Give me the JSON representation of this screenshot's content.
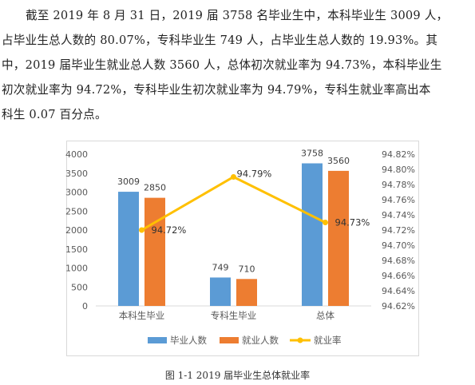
{
  "paragraph": {
    "lines": [
      "截至 2019 年 8 月 31 日，2019 届 3758 名毕业生中，本科毕业生 3009 人，",
      "占毕业生总人数的 80.07%，专科毕业生 749 人，占毕业生总人数的 19.93%。其",
      "中，2019 届毕业生就业总人数 3560 人，总体初次就业率为 94.73%，本科毕业生",
      "初次就业率为 94.72%，专科毕业生初次就业率为 94.79%，专科生就业率高出本",
      "科生 0.07 百分点。"
    ]
  },
  "caption": "图 1-1    2019 届毕业生总体就业率",
  "colors": {
    "grad": "#5B9BD5",
    "emp": "#ED7D31",
    "rate": "#FFC000",
    "grid": "#d9d9d9",
    "axis_text": "#595959"
  },
  "chart_data": {
    "type": "bar",
    "categories": [
      "本科生毕业",
      "专科生毕业",
      "总体"
    ],
    "series": [
      {
        "name": "毕业人数",
        "type": "bar",
        "axis": "left",
        "values": [
          3009,
          749,
          3758
        ]
      },
      {
        "name": "就业人数",
        "type": "bar",
        "axis": "left",
        "values": [
          2850,
          710,
          3560
        ]
      },
      {
        "name": "就业率",
        "type": "line",
        "axis": "right",
        "values": [
          94.72,
          94.79,
          94.73
        ],
        "labels": [
          "94.72%",
          "94.79%",
          "94.73%"
        ]
      }
    ],
    "bar_labels": [
      [
        "3009",
        "749",
        "3758"
      ],
      [
        "2850",
        "710",
        "3560"
      ]
    ],
    "y_left": {
      "min": 0,
      "max": 4000,
      "ticks": [
        "0",
        "500",
        "1000",
        "1500",
        "2000",
        "2500",
        "3000",
        "3500",
        "4000"
      ]
    },
    "y_right": {
      "min": 94.62,
      "max": 94.82,
      "ticks": [
        "94.62%",
        "94.64%",
        "94.66%",
        "94.68%",
        "94.70%",
        "94.72%",
        "94.74%",
        "94.76%",
        "94.78%",
        "94.80%",
        "94.82%"
      ]
    },
    "legend_position": "bottom",
    "grid": false
  }
}
